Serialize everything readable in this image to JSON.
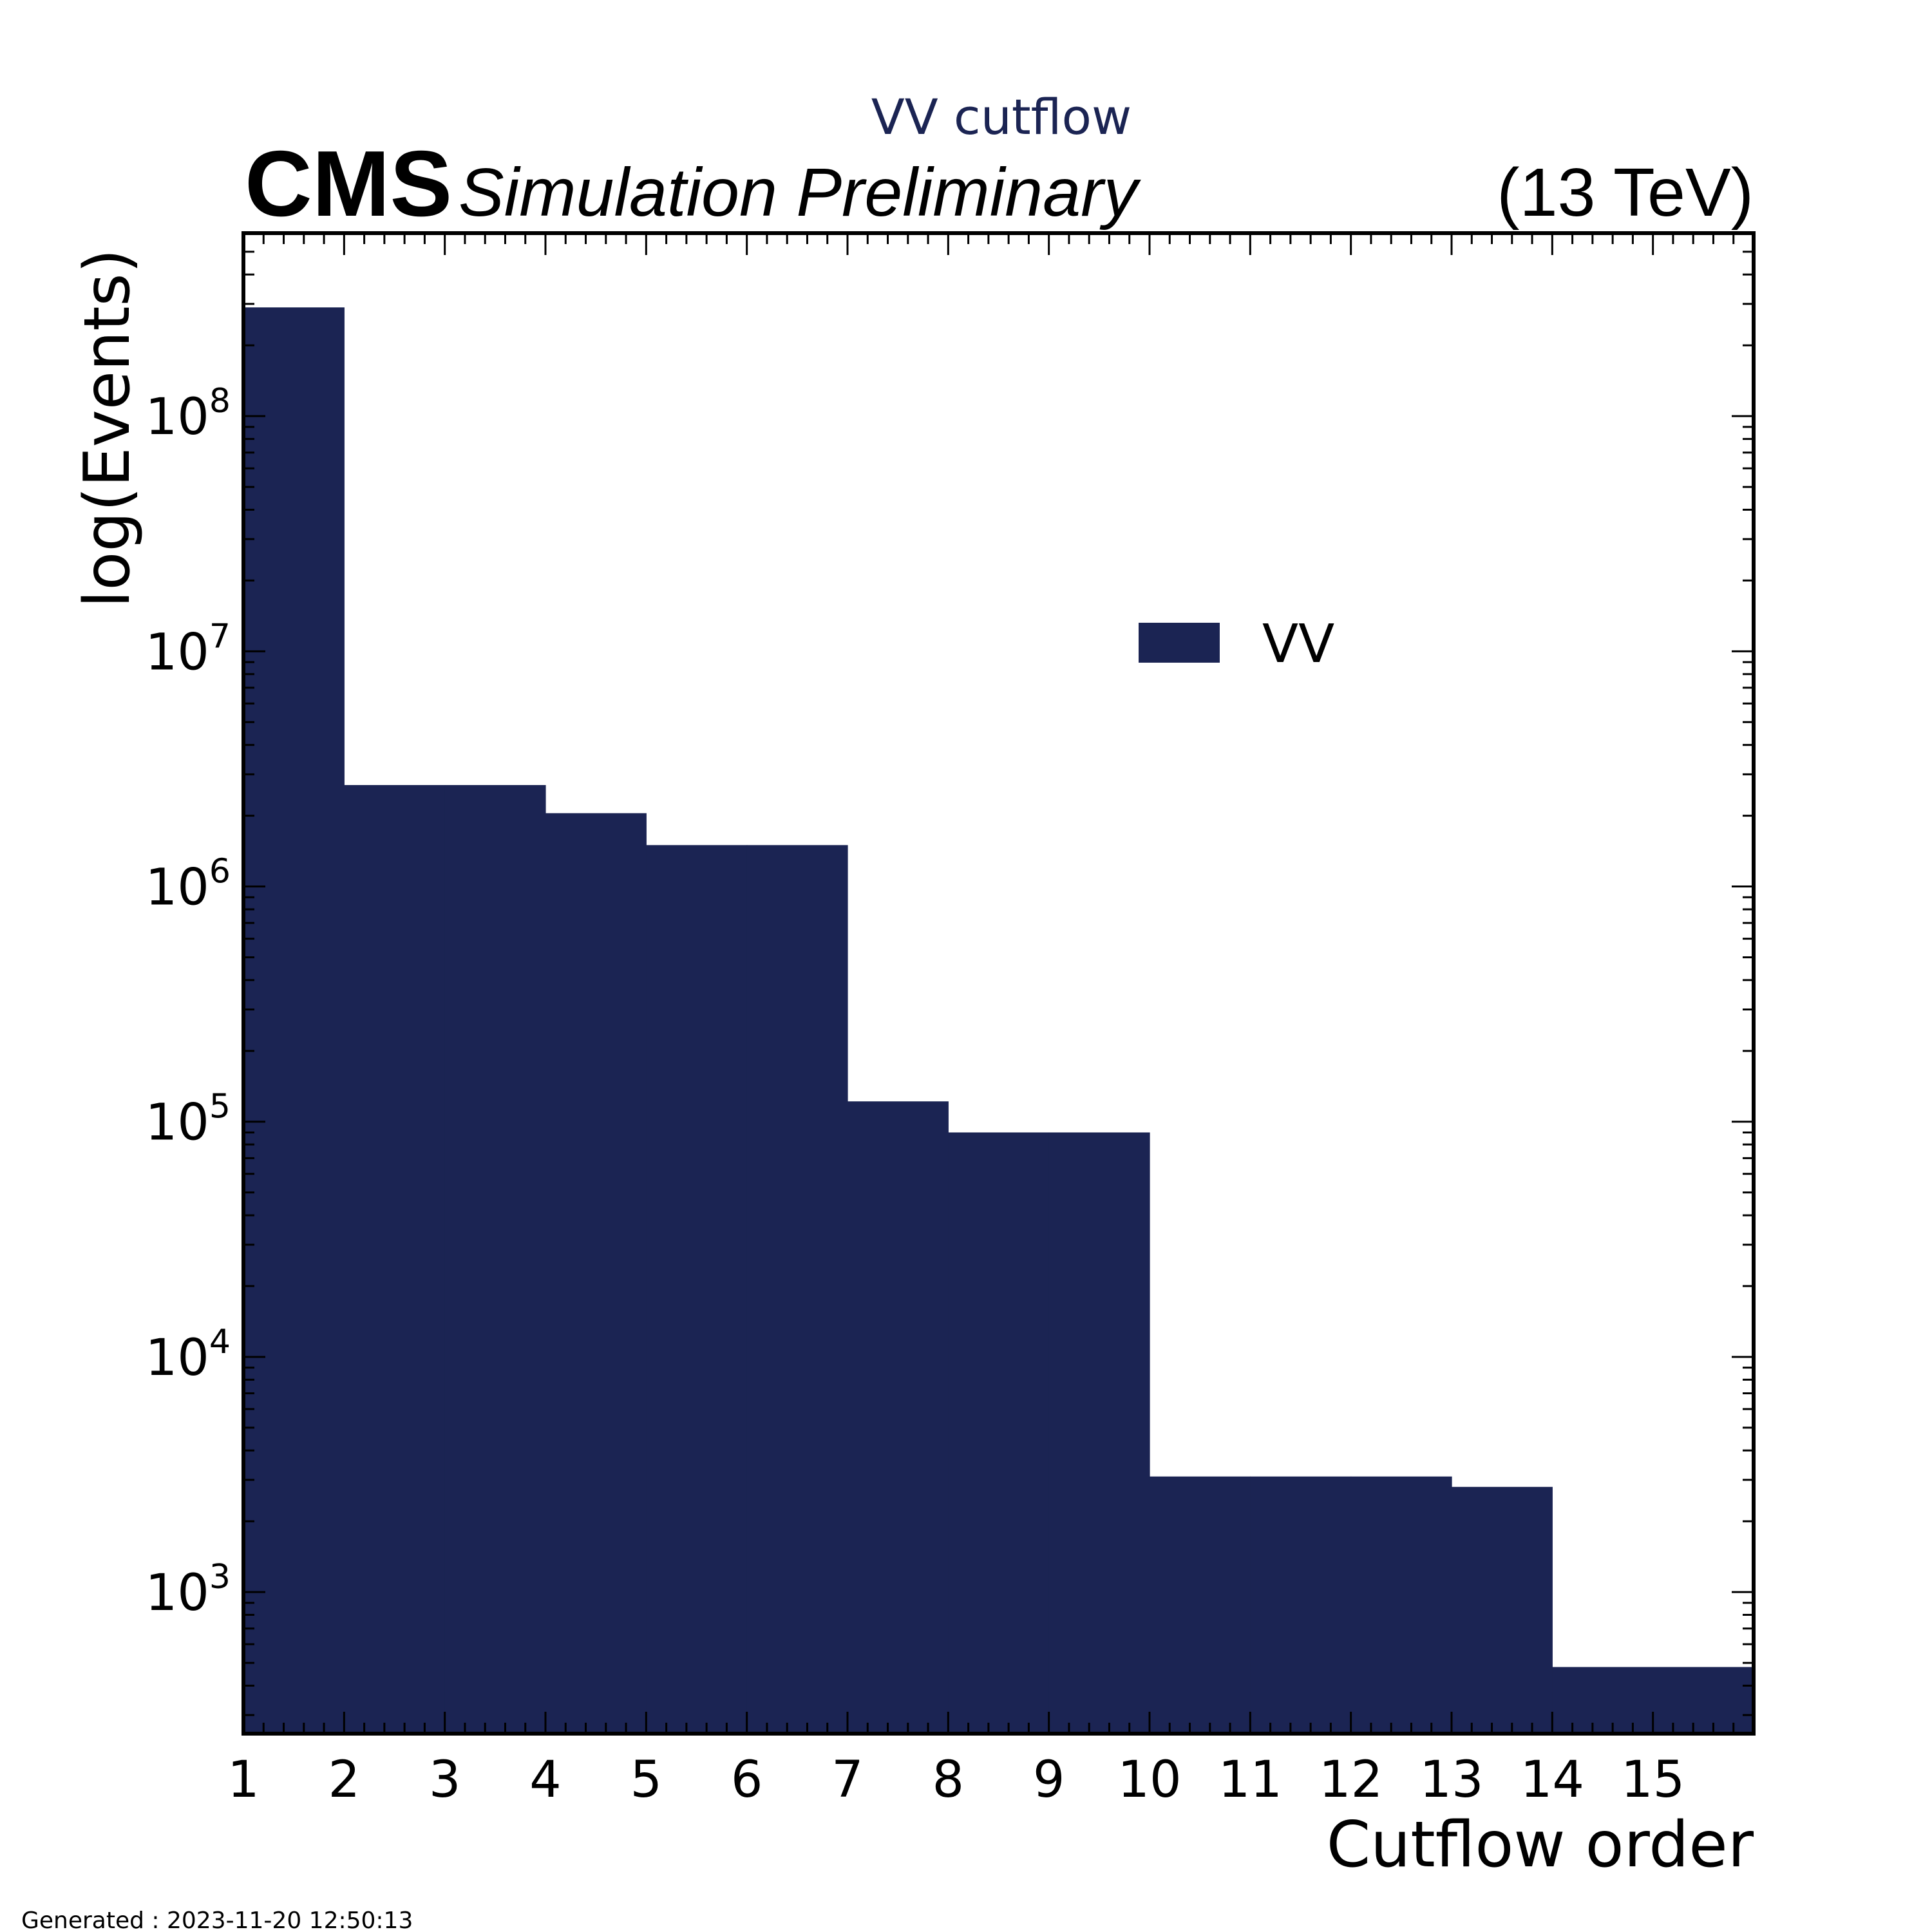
{
  "header": {
    "experiment": "CMS",
    "status": "Simulation Preliminary",
    "energy": "(13 TeV)",
    "plot_title": "VV cutflow"
  },
  "footer": {
    "generated": "Generated : 2023-11-20 12:50:13"
  },
  "colors": {
    "fill": "#1b2453",
    "axis": "#000000",
    "background": "#ffffff"
  },
  "chart_data": {
    "type": "bar",
    "title": "VV cutflow",
    "xlabel": "Cutflow order",
    "ylabel": "log(Events)",
    "yscale": "log",
    "xlim": [
      1,
      16
    ],
    "ylim": [
      250,
      600000000
    ],
    "x_ticks": [
      "1",
      "2",
      "3",
      "4",
      "5",
      "6",
      "7",
      "8",
      "9",
      "10",
      "11",
      "12",
      "13",
      "14",
      "15"
    ],
    "y_ticks": [
      {
        "value": 1000,
        "base": "10",
        "exp": "3"
      },
      {
        "value": 10000,
        "base": "10",
        "exp": "4"
      },
      {
        "value": 100000,
        "base": "10",
        "exp": "5"
      },
      {
        "value": 1000000,
        "base": "10",
        "exp": "6"
      },
      {
        "value": 10000000,
        "base": "10",
        "exp": "7"
      },
      {
        "value": 100000000,
        "base": "10",
        "exp": "8"
      }
    ],
    "bin_edges": [
      1,
      2,
      3,
      4,
      5,
      6,
      7,
      8,
      9,
      10,
      11,
      12,
      13,
      14,
      15,
      16
    ],
    "series": [
      {
        "name": "VV",
        "values": [
          290000000,
          2700000,
          2700000,
          2050000,
          1500000,
          1500000,
          122000,
          90000,
          90000,
          3100,
          3100,
          3100,
          2800,
          480,
          480
        ]
      }
    ],
    "legend": {
      "position": "upper-right",
      "entries": [
        "VV"
      ]
    },
    "grid": false
  }
}
